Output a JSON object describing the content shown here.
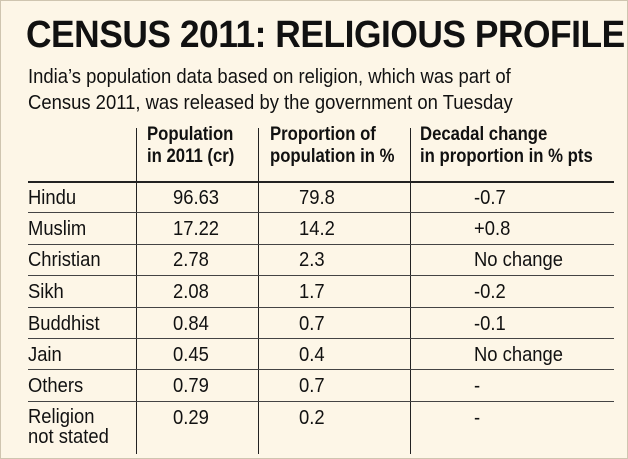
{
  "header": {
    "title": "CENSUS 2011: RELIGIOUS PROFILE",
    "subtitle_line1": "India’s population data based on religion, which was part of",
    "subtitle_line2": "Census 2011, was released by the government on Tuesday"
  },
  "table": {
    "columns": [
      {
        "line1": "Population",
        "line2": "in 2011 (cr)"
      },
      {
        "line1": "Proportion of",
        "line2": "population in %"
      },
      {
        "line1": "Decadal change",
        "line2": "in proportion in % pts"
      }
    ],
    "rows": [
      {
        "religion": "Hindu",
        "population": "96.63",
        "proportion": "79.8",
        "change": "-0.7"
      },
      {
        "religion": "Muslim",
        "population": "17.22",
        "proportion": "14.2",
        "change": "+0.8"
      },
      {
        "religion": "Christian",
        "population": "2.78",
        "proportion": "2.3",
        "change": "No change"
      },
      {
        "religion": "Sikh",
        "population": "2.08",
        "proportion": "1.7",
        "change": "-0.2"
      },
      {
        "religion": "Buddhist",
        "population": "0.84",
        "proportion": "0.7",
        "change": "-0.1"
      },
      {
        "religion": "Jain",
        "population": "0.45",
        "proportion": "0.4",
        "change": "No change"
      },
      {
        "religion": "Others",
        "population": "0.79",
        "proportion": "0.7",
        "change": "-"
      },
      {
        "religion_line1": "Religion",
        "religion_line2": "not stated",
        "population": "0.29",
        "proportion": "0.2",
        "change": "-"
      }
    ]
  }
}
